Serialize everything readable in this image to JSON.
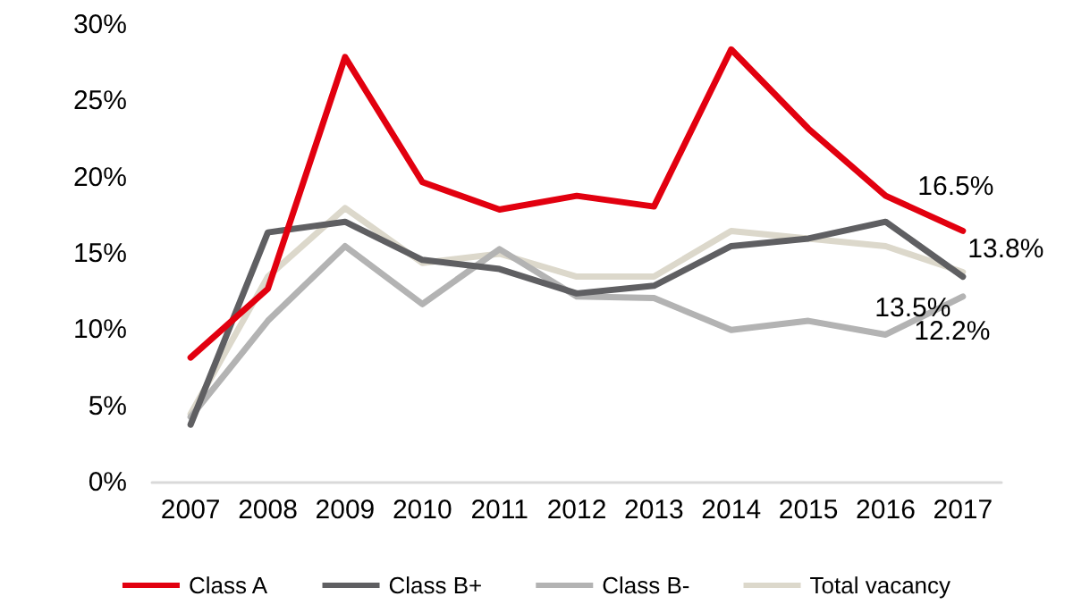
{
  "chart_data": {
    "type": "line",
    "categories": [
      "2007",
      "2008",
      "2009",
      "2010",
      "2011",
      "2012",
      "2013",
      "2014",
      "2015",
      "2016",
      "2017"
    ],
    "series": [
      {
        "name": "Class A",
        "color": "#e2000f",
        "values": [
          8.2,
          12.7,
          27.9,
          19.7,
          17.9,
          18.8,
          18.1,
          28.4,
          23.2,
          18.8,
          16.5
        ],
        "value_labels": [
          null,
          null,
          null,
          null,
          null,
          null,
          null,
          null,
          null,
          null,
          "16.5%"
        ]
      },
      {
        "name": "Class B+",
        "color": "#5f5f62",
        "values": [
          3.8,
          16.4,
          17.1,
          14.6,
          14.0,
          12.4,
          12.9,
          15.5,
          16.0,
          17.1,
          13.5
        ],
        "value_labels": [
          null,
          null,
          null,
          null,
          null,
          null,
          null,
          null,
          null,
          null,
          "13.5%"
        ]
      },
      {
        "name": "Class B-",
        "color": "#b3b3b3",
        "values": [
          4.3,
          10.6,
          15.5,
          11.7,
          15.3,
          12.2,
          12.1,
          10.0,
          10.6,
          9.7,
          12.2
        ],
        "value_labels": [
          null,
          null,
          null,
          null,
          null,
          null,
          null,
          null,
          null,
          null,
          "12.2%"
        ]
      },
      {
        "name": "Total vacancy",
        "color": "#dcd8cb",
        "values": [
          4.5,
          13.5,
          18.0,
          14.4,
          15.0,
          13.5,
          13.5,
          16.5,
          16.0,
          15.5,
          13.8
        ],
        "value_labels": [
          null,
          null,
          null,
          null,
          null,
          null,
          null,
          null,
          null,
          null,
          "13.8%"
        ]
      }
    ],
    "ylim": [
      0,
      30
    ],
    "yticks": [
      {
        "value": 0,
        "label": "0%"
      },
      {
        "value": 5,
        "label": "5%"
      },
      {
        "value": 10,
        "label": "10%"
      },
      {
        "value": 15,
        "label": "15%"
      },
      {
        "value": 20,
        "label": "20%"
      },
      {
        "value": 25,
        "label": "25%"
      },
      {
        "value": 30,
        "label": "30%"
      }
    ],
    "grid": false,
    "legend": "bottom",
    "marker": "none",
    "line_style": "solid"
  }
}
